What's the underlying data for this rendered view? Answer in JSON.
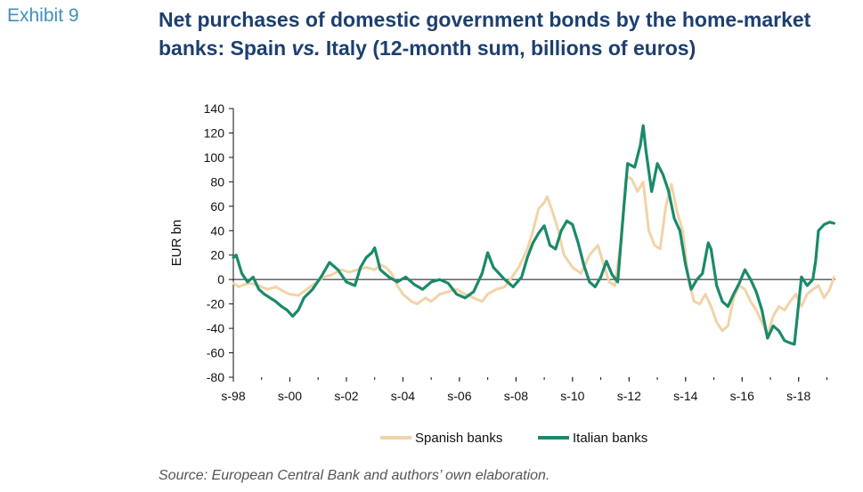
{
  "exhibit_label": "Exhibit 9",
  "title_part1": "Net purchases of domestic government bonds by the home-market banks: Spain ",
  "title_vs": "vs.",
  "title_part2": " Italy (12-month sum, billions of euros)",
  "source": "Source: European Central Bank and authors’ own elaboration.",
  "chart_data": {
    "type": "line",
    "title": "Net purchases of domestic government bonds by the home-market banks: Spain vs. Italy (12-month sum, billions of euros)",
    "xlabel": "",
    "ylabel": "EUR bn",
    "xlim": [
      1998.0,
      2019.3
    ],
    "ylim": [
      -80,
      140
    ],
    "yticks": [
      -80,
      -60,
      -40,
      -20,
      0,
      20,
      40,
      60,
      80,
      100,
      120,
      140
    ],
    "xticks": [
      {
        "x": 1998.0,
        "label": "s-98"
      },
      {
        "x": 2000.0,
        "label": "s-00"
      },
      {
        "x": 2002.0,
        "label": "s-02"
      },
      {
        "x": 2004.0,
        "label": "s-04"
      },
      {
        "x": 2006.0,
        "label": "s-06"
      },
      {
        "x": 2008.0,
        "label": "s-08"
      },
      {
        "x": 2010.0,
        "label": "s-10"
      },
      {
        "x": 2012.0,
        "label": "s-12"
      },
      {
        "x": 2014.0,
        "label": "s-14"
      },
      {
        "x": 2016.0,
        "label": "s-16"
      },
      {
        "x": 2018.0,
        "label": "s-18"
      }
    ],
    "grid": false,
    "legend": "bottom",
    "series": [
      {
        "name": "Spanish banks",
        "color": "#f1d3a7",
        "points": [
          [
            1998.0,
            -3
          ],
          [
            1998.2,
            -6
          ],
          [
            1998.4,
            -4
          ],
          [
            1998.6,
            -3
          ],
          [
            1998.9,
            -5
          ],
          [
            1999.2,
            -8
          ],
          [
            1999.5,
            -6
          ],
          [
            1999.8,
            -10
          ],
          [
            2000.0,
            -12
          ],
          [
            2000.3,
            -13
          ],
          [
            2000.6,
            -8
          ],
          [
            2000.9,
            -3
          ],
          [
            2001.2,
            2
          ],
          [
            2001.5,
            4
          ],
          [
            2001.8,
            8
          ],
          [
            2002.1,
            6
          ],
          [
            2002.4,
            8
          ],
          [
            2002.7,
            10
          ],
          [
            2003.0,
            8
          ],
          [
            2003.2,
            12
          ],
          [
            2003.4,
            10
          ],
          [
            2003.6,
            5
          ],
          [
            2003.8,
            -5
          ],
          [
            2004.0,
            -12
          ],
          [
            2004.3,
            -18
          ],
          [
            2004.5,
            -20
          ],
          [
            2004.8,
            -15
          ],
          [
            2005.0,
            -18
          ],
          [
            2005.3,
            -12
          ],
          [
            2005.6,
            -10
          ],
          [
            2005.9,
            -8
          ],
          [
            2006.2,
            -12
          ],
          [
            2006.5,
            -15
          ],
          [
            2006.8,
            -18
          ],
          [
            2007.0,
            -12
          ],
          [
            2007.3,
            -8
          ],
          [
            2007.6,
            -6
          ],
          [
            2007.8,
            0
          ],
          [
            2008.1,
            10
          ],
          [
            2008.4,
            25
          ],
          [
            2008.6,
            40
          ],
          [
            2008.8,
            58
          ],
          [
            2009.0,
            63
          ],
          [
            2009.1,
            68
          ],
          [
            2009.3,
            55
          ],
          [
            2009.5,
            40
          ],
          [
            2009.7,
            20
          ],
          [
            2010.0,
            10
          ],
          [
            2010.3,
            5
          ],
          [
            2010.6,
            20
          ],
          [
            2010.9,
            28
          ],
          [
            2011.1,
            12
          ],
          [
            2011.3,
            -2
          ],
          [
            2011.5,
            -5
          ],
          [
            2011.7,
            30
          ],
          [
            2011.9,
            85
          ],
          [
            2012.1,
            82
          ],
          [
            2012.3,
            72
          ],
          [
            2012.5,
            80
          ],
          [
            2012.7,
            40
          ],
          [
            2012.9,
            28
          ],
          [
            2013.1,
            25
          ],
          [
            2013.3,
            60
          ],
          [
            2013.5,
            78
          ],
          [
            2013.7,
            55
          ],
          [
            2013.9,
            40
          ],
          [
            2014.1,
            0
          ],
          [
            2014.3,
            -18
          ],
          [
            2014.5,
            -20
          ],
          [
            2014.7,
            -12
          ],
          [
            2014.9,
            -22
          ],
          [
            2015.1,
            -35
          ],
          [
            2015.3,
            -42
          ],
          [
            2015.5,
            -38
          ],
          [
            2015.7,
            -15
          ],
          [
            2015.9,
            -5
          ],
          [
            2016.1,
            -8
          ],
          [
            2016.3,
            -18
          ],
          [
            2016.5,
            -25
          ],
          [
            2016.7,
            -35
          ],
          [
            2016.9,
            -45
          ],
          [
            2017.1,
            -30
          ],
          [
            2017.3,
            -22
          ],
          [
            2017.5,
            -25
          ],
          [
            2017.7,
            -18
          ],
          [
            2017.9,
            -12
          ],
          [
            2018.1,
            -22
          ],
          [
            2018.3,
            -12
          ],
          [
            2018.5,
            -8
          ],
          [
            2018.7,
            -5
          ],
          [
            2018.9,
            -15
          ],
          [
            2019.1,
            -8
          ],
          [
            2019.25,
            2
          ]
        ]
      },
      {
        "name": "Italian banks",
        "color": "#1a8a6a",
        "points": [
          [
            1998.0,
            18
          ],
          [
            1998.1,
            20
          ],
          [
            1998.3,
            5
          ],
          [
            1998.5,
            -2
          ],
          [
            1998.7,
            2
          ],
          [
            1998.9,
            -8
          ],
          [
            1999.1,
            -12
          ],
          [
            1999.3,
            -15
          ],
          [
            1999.5,
            -18
          ],
          [
            1999.7,
            -22
          ],
          [
            1999.9,
            -25
          ],
          [
            2000.1,
            -30
          ],
          [
            2000.3,
            -25
          ],
          [
            2000.5,
            -15
          ],
          [
            2000.8,
            -8
          ],
          [
            2001.1,
            2
          ],
          [
            2001.4,
            14
          ],
          [
            2001.7,
            8
          ],
          [
            2002.0,
            -2
          ],
          [
            2002.3,
            -5
          ],
          [
            2002.5,
            10
          ],
          [
            2002.7,
            18
          ],
          [
            2002.9,
            22
          ],
          [
            2003.0,
            26
          ],
          [
            2003.2,
            8
          ],
          [
            2003.5,
            2
          ],
          [
            2003.8,
            -2
          ],
          [
            2004.1,
            2
          ],
          [
            2004.4,
            -4
          ],
          [
            2004.7,
            -8
          ],
          [
            2005.0,
            -2
          ],
          [
            2005.3,
            0
          ],
          [
            2005.6,
            -3
          ],
          [
            2005.9,
            -12
          ],
          [
            2006.2,
            -15
          ],
          [
            2006.5,
            -10
          ],
          [
            2006.8,
            5
          ],
          [
            2007.0,
            22
          ],
          [
            2007.2,
            10
          ],
          [
            2007.4,
            5
          ],
          [
            2007.6,
            0
          ],
          [
            2007.9,
            -6
          ],
          [
            2008.2,
            2
          ],
          [
            2008.4,
            18
          ],
          [
            2008.6,
            30
          ],
          [
            2008.8,
            38
          ],
          [
            2009.0,
            44
          ],
          [
            2009.2,
            28
          ],
          [
            2009.4,
            25
          ],
          [
            2009.6,
            40
          ],
          [
            2009.8,
            48
          ],
          [
            2010.0,
            45
          ],
          [
            2010.2,
            30
          ],
          [
            2010.4,
            12
          ],
          [
            2010.6,
            -2
          ],
          [
            2010.8,
            -6
          ],
          [
            2011.0,
            2
          ],
          [
            2011.2,
            15
          ],
          [
            2011.4,
            4
          ],
          [
            2011.6,
            -2
          ],
          [
            2011.8,
            55
          ],
          [
            2011.95,
            95
          ],
          [
            2012.2,
            92
          ],
          [
            2012.4,
            110
          ],
          [
            2012.5,
            126
          ],
          [
            2012.6,
            105
          ],
          [
            2012.8,
            72
          ],
          [
            2013.0,
            95
          ],
          [
            2013.2,
            86
          ],
          [
            2013.4,
            72
          ],
          [
            2013.6,
            50
          ],
          [
            2013.8,
            40
          ],
          [
            2014.0,
            12
          ],
          [
            2014.2,
            -8
          ],
          [
            2014.4,
            0
          ],
          [
            2014.6,
            5
          ],
          [
            2014.8,
            30
          ],
          [
            2014.9,
            25
          ],
          [
            2015.1,
            -5
          ],
          [
            2015.3,
            -18
          ],
          [
            2015.5,
            -22
          ],
          [
            2015.7,
            -12
          ],
          [
            2015.9,
            -3
          ],
          [
            2016.1,
            8
          ],
          [
            2016.3,
            0
          ],
          [
            2016.5,
            -10
          ],
          [
            2016.7,
            -25
          ],
          [
            2016.9,
            -48
          ],
          [
            2017.1,
            -38
          ],
          [
            2017.3,
            -42
          ],
          [
            2017.5,
            -50
          ],
          [
            2017.7,
            -52
          ],
          [
            2017.85,
            -53
          ],
          [
            2018.0,
            -20
          ],
          [
            2018.1,
            2
          ],
          [
            2018.3,
            -5
          ],
          [
            2018.5,
            0
          ],
          [
            2018.6,
            15
          ],
          [
            2018.7,
            40
          ],
          [
            2018.9,
            45
          ],
          [
            2019.1,
            47
          ],
          [
            2019.25,
            46
          ]
        ]
      }
    ]
  }
}
